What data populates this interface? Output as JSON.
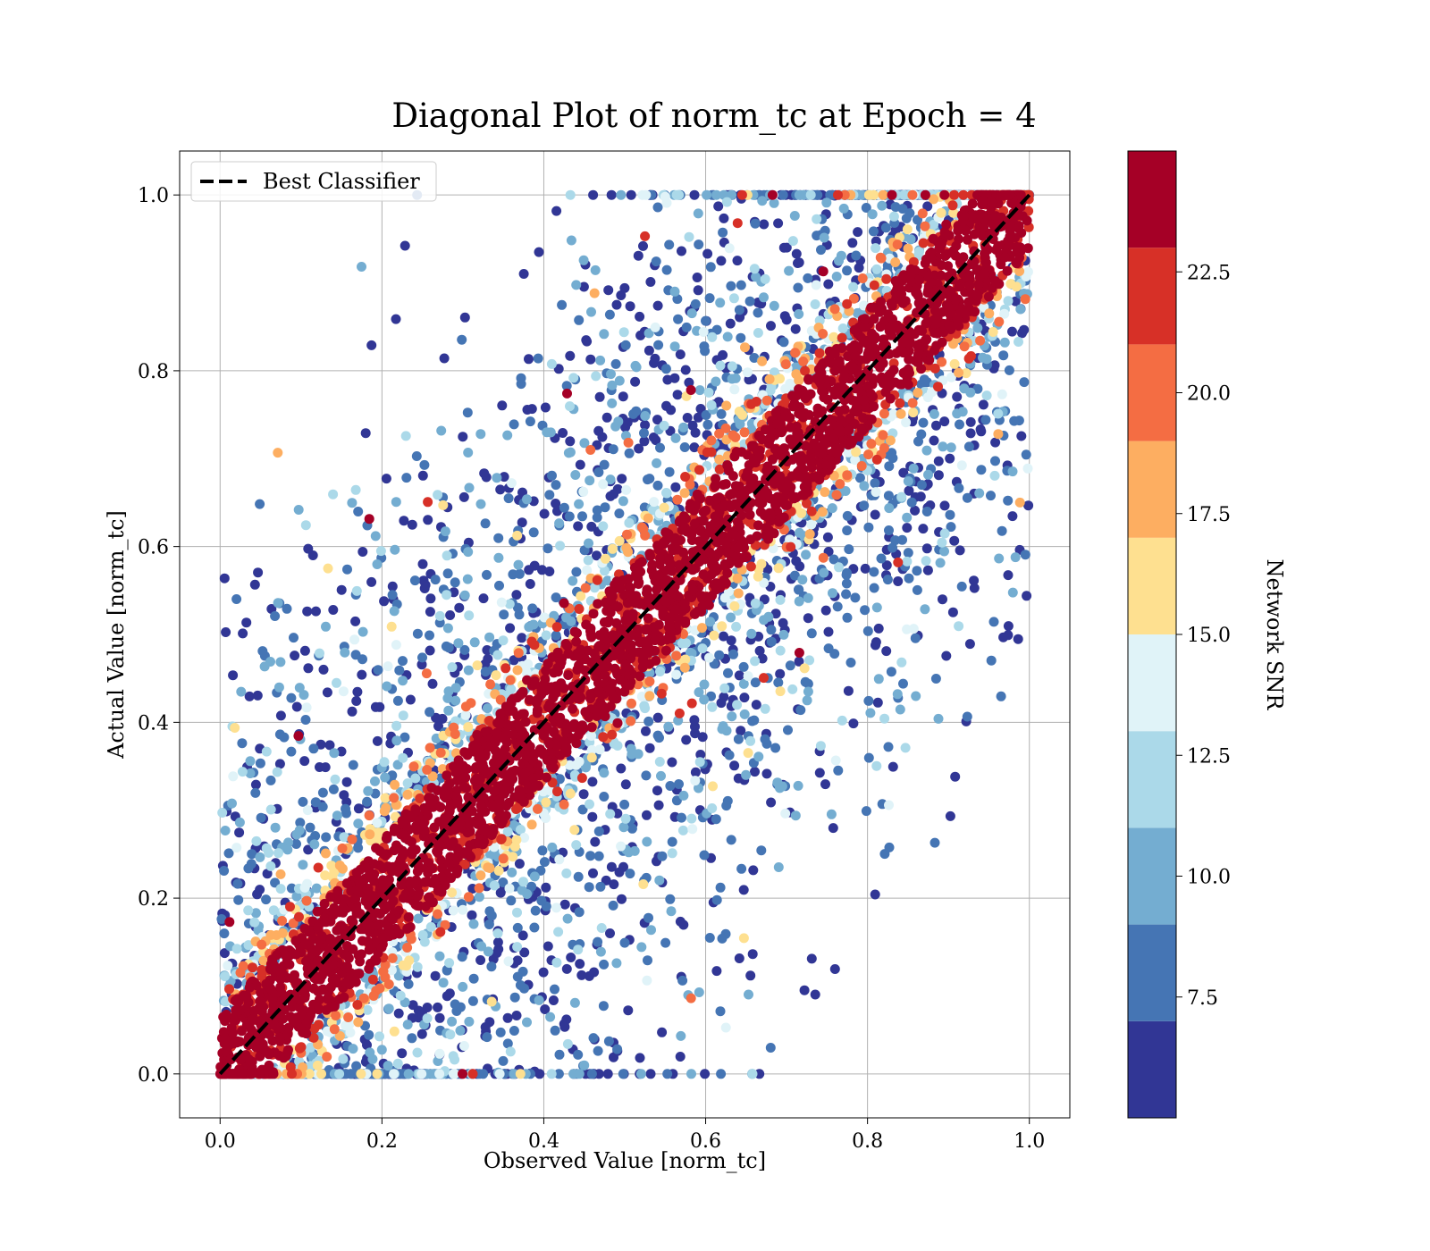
{
  "chart_data": {
    "type": "scatter",
    "title": "Diagonal Plot of norm_tc at Epoch = 4",
    "xlabel": "Observed Value [norm_tc]",
    "ylabel": "Actual Value [norm_tc]",
    "xlim": [
      -0.05,
      1.05
    ],
    "ylim": [
      -0.05,
      1.05
    ],
    "x_ticks": [
      0.0,
      0.2,
      0.4,
      0.6,
      0.8,
      1.0
    ],
    "y_ticks": [
      0.0,
      0.2,
      0.4,
      0.6,
      0.8,
      1.0
    ],
    "x_tick_labels": [
      "0.0",
      "0.2",
      "0.4",
      "0.6",
      "0.8",
      "1.0"
    ],
    "y_tick_labels": [
      "0.0",
      "0.2",
      "0.4",
      "0.6",
      "0.8",
      "1.0"
    ],
    "grid": true,
    "legend": {
      "placement": "upper-left",
      "entries": [
        {
          "label": "Best Classifier",
          "style": "dashed",
          "color": "#000000"
        }
      ]
    },
    "reference_line": {
      "name": "Best Classifier",
      "x": [
        0.0,
        1.0
      ],
      "y": [
        0.0,
        1.0
      ],
      "color": "#000000",
      "style": "dashed"
    },
    "colorbar": {
      "label": "Network SNR",
      "range": [
        5.0,
        25.0
      ],
      "ticks": [
        7.5,
        10.0,
        12.5,
        15.0,
        17.5,
        20.0,
        22.5
      ],
      "tick_labels": [
        "7.5",
        "10.0",
        "12.5",
        "15.0",
        "17.5",
        "20.0",
        "22.5"
      ],
      "levels": [
        5.0,
        7.0,
        9.0,
        11.0,
        13.0,
        15.0,
        17.0,
        19.0,
        21.0,
        23.0,
        25.0
      ],
      "colors": [
        "#313695",
        "#4575b4",
        "#74add1",
        "#abd9e9",
        "#e0f3f8",
        "#fee090",
        "#fdae61",
        "#f46d43",
        "#d73027",
        "#a50026"
      ]
    },
    "scatter_description": {
      "x_range": [
        0.0,
        1.0
      ],
      "y_range": [
        0.0,
        1.0
      ],
      "high_snr_band_halfwidth": 0.07,
      "high_snr_color": "#a50026",
      "low_snr_color": "#313695"
    }
  }
}
